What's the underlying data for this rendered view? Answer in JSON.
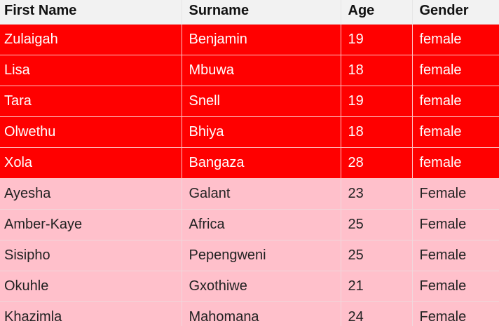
{
  "colors": {
    "header_bg": "#f2f2f2",
    "highlight_row_bg": "#ff0000",
    "highlight_row_text": "#ffffff",
    "normal_row_bg": "#ffc0cb",
    "normal_row_text": "#222222"
  },
  "table": {
    "headers": [
      "First Name",
      "Surname",
      "Age",
      "Gender"
    ],
    "rows": [
      {
        "first_name": "Zulaigah",
        "surname": "Benjamin",
        "age": "19",
        "gender": "female",
        "style": "red"
      },
      {
        "first_name": "Lisa",
        "surname": "Mbuwa",
        "age": "18",
        "gender": "female",
        "style": "red"
      },
      {
        "first_name": "Tara",
        "surname": "Snell",
        "age": "19",
        "gender": "female",
        "style": "red"
      },
      {
        "first_name": "Olwethu",
        "surname": "Bhiya",
        "age": "18",
        "gender": "female",
        "style": "red"
      },
      {
        "first_name": "Xola",
        "surname": "Bangaza",
        "age": "28",
        "gender": "female",
        "style": "red"
      },
      {
        "first_name": "Ayesha",
        "surname": "Galant",
        "age": "23",
        "gender": "Female",
        "style": "pink"
      },
      {
        "first_name": "Amber-Kaye",
        "surname": "Africa",
        "age": "25",
        "gender": "Female",
        "style": "pink"
      },
      {
        "first_name": "Sisipho",
        "surname": "Pepengweni",
        "age": "25",
        "gender": "Female",
        "style": "pink"
      },
      {
        "first_name": "Okuhle",
        "surname": "Gxothiwe",
        "age": "21",
        "gender": "Female",
        "style": "pink"
      },
      {
        "first_name": "Khazimla",
        "surname": "Mahomana",
        "age": "24",
        "gender": "Female",
        "style": "pink"
      }
    ]
  }
}
